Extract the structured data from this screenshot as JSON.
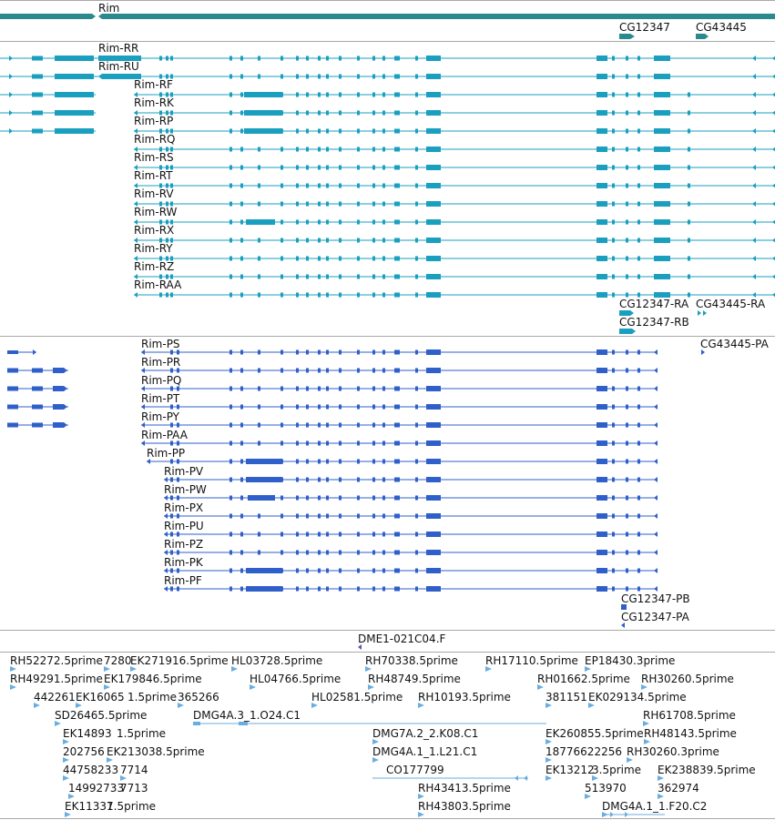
{
  "colors": {
    "gene": "#2a8a8e",
    "mrna": "#1a9fbf",
    "protein": "#2f5fc9",
    "est": "#6aaedf",
    "separator": "#a9a9a9"
  },
  "tracks": {
    "gene": {
      "main_label": "Rim",
      "right_labels": [
        "CG12347",
        "CG43445"
      ]
    },
    "mrna": {
      "left_labels": [
        "Rim-RR",
        "Rim-RU"
      ],
      "labels": [
        "Rim-RF",
        "Rim-RK",
        "Rim-RP",
        "Rim-RQ",
        "Rim-RS",
        "Rim-RT",
        "Rim-RV",
        "Rim-RW",
        "Rim-RX",
        "Rim-RY",
        "Rim-RZ",
        "Rim-RAA"
      ],
      "right_labels": [
        "CG12347-RA",
        "CG43445-RA",
        "CG12347-RB"
      ]
    },
    "protein": {
      "labels_a": [
        "Rim-PS",
        "Rim-PR",
        "Rim-PQ",
        "Rim-PT",
        "Rim-PY",
        "Rim-PAA",
        "Rim-PP"
      ],
      "labels_b": [
        "Rim-PV",
        "Rim-PW",
        "Rim-PX",
        "Rim-PU",
        "Rim-PZ",
        "Rim-PK",
        "Rim-PF"
      ],
      "right_labels": [
        "CG43445-PA",
        "CG12347-PB",
        "CG12347-PA"
      ]
    },
    "clone": {
      "label": "DME1-021C04.F"
    },
    "est": {
      "labels": [
        "RH52272.5prime",
        "7280",
        "EK271916.5prime",
        "HL03728.5prime",
        "RH70338.5prime",
        "RH17110.5prime",
        "EP18430.3prime",
        "RH49291.5prime",
        "EK179846.5prime",
        "HL04766.5prime",
        "RH48749.5prime",
        "RH01662.5prime",
        "RH30260.5prime",
        "442261",
        "EK16065",
        "1.5prime",
        "365266",
        "HL02581.5prime",
        "RH10193.5prime",
        "381151",
        "EK029134.5prime",
        "SD26465.5prime",
        "RH61708.5prime",
        "DMG4A.3_1.O24.C1",
        "EK14893",
        "1.5prime",
        "DMG7A.2_2.K08.C1",
        "EK260855.5prime",
        "RH48143.5prime",
        "202756",
        "EK213038.5prime",
        "DMG4A.1_1.L21.C1",
        "18776622256",
        "RH30260.3prime",
        "44758233",
        "7714",
        "CO177799",
        "EK13212",
        "3.5prime",
        "EK238839.5prime",
        "14992733",
        "7713",
        "RH43413.5prime",
        "513970",
        "362974",
        "EK11331",
        "7.5prime",
        "RH43803.5prime",
        "DMG4A.1_1.F20.C2"
      ]
    }
  }
}
